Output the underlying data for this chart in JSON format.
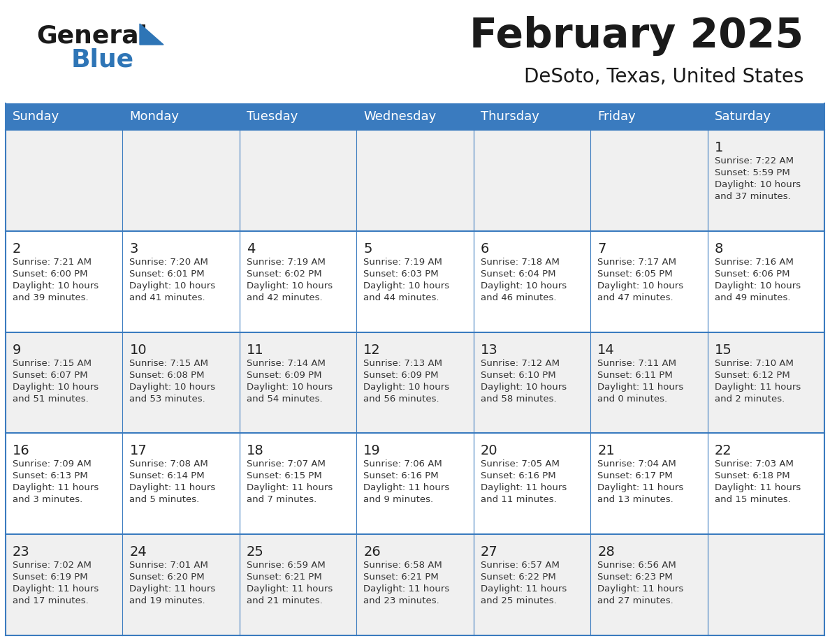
{
  "title": "February 2025",
  "subtitle": "DeSoto, Texas, United States",
  "header_bg": "#3a7bbf",
  "header_text": "#ffffff",
  "day_names": [
    "Sunday",
    "Monday",
    "Tuesday",
    "Wednesday",
    "Thursday",
    "Friday",
    "Saturday"
  ],
  "odd_row_bg": "#f0f0f0",
  "even_row_bg": "#ffffff",
  "cell_border_color": "#3a7bbf",
  "logo_general_color": "#1a1a1a",
  "logo_blue_color": "#2e75b6",
  "title_color": "#1a1a1a",
  "subtitle_color": "#1a1a1a",
  "calendar_data": [
    [
      {
        "day": null
      },
      {
        "day": null
      },
      {
        "day": null
      },
      {
        "day": null
      },
      {
        "day": null
      },
      {
        "day": null
      },
      {
        "day": 1,
        "sunrise": "7:22 AM",
        "sunset": "5:59 PM",
        "daylight": "10 hours\nand 37 minutes."
      }
    ],
    [
      {
        "day": 2,
        "sunrise": "7:21 AM",
        "sunset": "6:00 PM",
        "daylight": "10 hours\nand 39 minutes."
      },
      {
        "day": 3,
        "sunrise": "7:20 AM",
        "sunset": "6:01 PM",
        "daylight": "10 hours\nand 41 minutes."
      },
      {
        "day": 4,
        "sunrise": "7:19 AM",
        "sunset": "6:02 PM",
        "daylight": "10 hours\nand 42 minutes."
      },
      {
        "day": 5,
        "sunrise": "7:19 AM",
        "sunset": "6:03 PM",
        "daylight": "10 hours\nand 44 minutes."
      },
      {
        "day": 6,
        "sunrise": "7:18 AM",
        "sunset": "6:04 PM",
        "daylight": "10 hours\nand 46 minutes."
      },
      {
        "day": 7,
        "sunrise": "7:17 AM",
        "sunset": "6:05 PM",
        "daylight": "10 hours\nand 47 minutes."
      },
      {
        "day": 8,
        "sunrise": "7:16 AM",
        "sunset": "6:06 PM",
        "daylight": "10 hours\nand 49 minutes."
      }
    ],
    [
      {
        "day": 9,
        "sunrise": "7:15 AM",
        "sunset": "6:07 PM",
        "daylight": "10 hours\nand 51 minutes."
      },
      {
        "day": 10,
        "sunrise": "7:15 AM",
        "sunset": "6:08 PM",
        "daylight": "10 hours\nand 53 minutes."
      },
      {
        "day": 11,
        "sunrise": "7:14 AM",
        "sunset": "6:09 PM",
        "daylight": "10 hours\nand 54 minutes."
      },
      {
        "day": 12,
        "sunrise": "7:13 AM",
        "sunset": "6:09 PM",
        "daylight": "10 hours\nand 56 minutes."
      },
      {
        "day": 13,
        "sunrise": "7:12 AM",
        "sunset": "6:10 PM",
        "daylight": "10 hours\nand 58 minutes."
      },
      {
        "day": 14,
        "sunrise": "7:11 AM",
        "sunset": "6:11 PM",
        "daylight": "11 hours\nand 0 minutes."
      },
      {
        "day": 15,
        "sunrise": "7:10 AM",
        "sunset": "6:12 PM",
        "daylight": "11 hours\nand 2 minutes."
      }
    ],
    [
      {
        "day": 16,
        "sunrise": "7:09 AM",
        "sunset": "6:13 PM",
        "daylight": "11 hours\nand 3 minutes."
      },
      {
        "day": 17,
        "sunrise": "7:08 AM",
        "sunset": "6:14 PM",
        "daylight": "11 hours\nand 5 minutes."
      },
      {
        "day": 18,
        "sunrise": "7:07 AM",
        "sunset": "6:15 PM",
        "daylight": "11 hours\nand 7 minutes."
      },
      {
        "day": 19,
        "sunrise": "7:06 AM",
        "sunset": "6:16 PM",
        "daylight": "11 hours\nand 9 minutes."
      },
      {
        "day": 20,
        "sunrise": "7:05 AM",
        "sunset": "6:16 PM",
        "daylight": "11 hours\nand 11 minutes."
      },
      {
        "day": 21,
        "sunrise": "7:04 AM",
        "sunset": "6:17 PM",
        "daylight": "11 hours\nand 13 minutes."
      },
      {
        "day": 22,
        "sunrise": "7:03 AM",
        "sunset": "6:18 PM",
        "daylight": "11 hours\nand 15 minutes."
      }
    ],
    [
      {
        "day": 23,
        "sunrise": "7:02 AM",
        "sunset": "6:19 PM",
        "daylight": "11 hours\nand 17 minutes."
      },
      {
        "day": 24,
        "sunrise": "7:01 AM",
        "sunset": "6:20 PM",
        "daylight": "11 hours\nand 19 minutes."
      },
      {
        "day": 25,
        "sunrise": "6:59 AM",
        "sunset": "6:21 PM",
        "daylight": "11 hours\nand 21 minutes."
      },
      {
        "day": 26,
        "sunrise": "6:58 AM",
        "sunset": "6:21 PM",
        "daylight": "11 hours\nand 23 minutes."
      },
      {
        "day": 27,
        "sunrise": "6:57 AM",
        "sunset": "6:22 PM",
        "daylight": "11 hours\nand 25 minutes."
      },
      {
        "day": 28,
        "sunrise": "6:56 AM",
        "sunset": "6:23 PM",
        "daylight": "11 hours\nand 27 minutes."
      },
      {
        "day": null
      }
    ]
  ]
}
